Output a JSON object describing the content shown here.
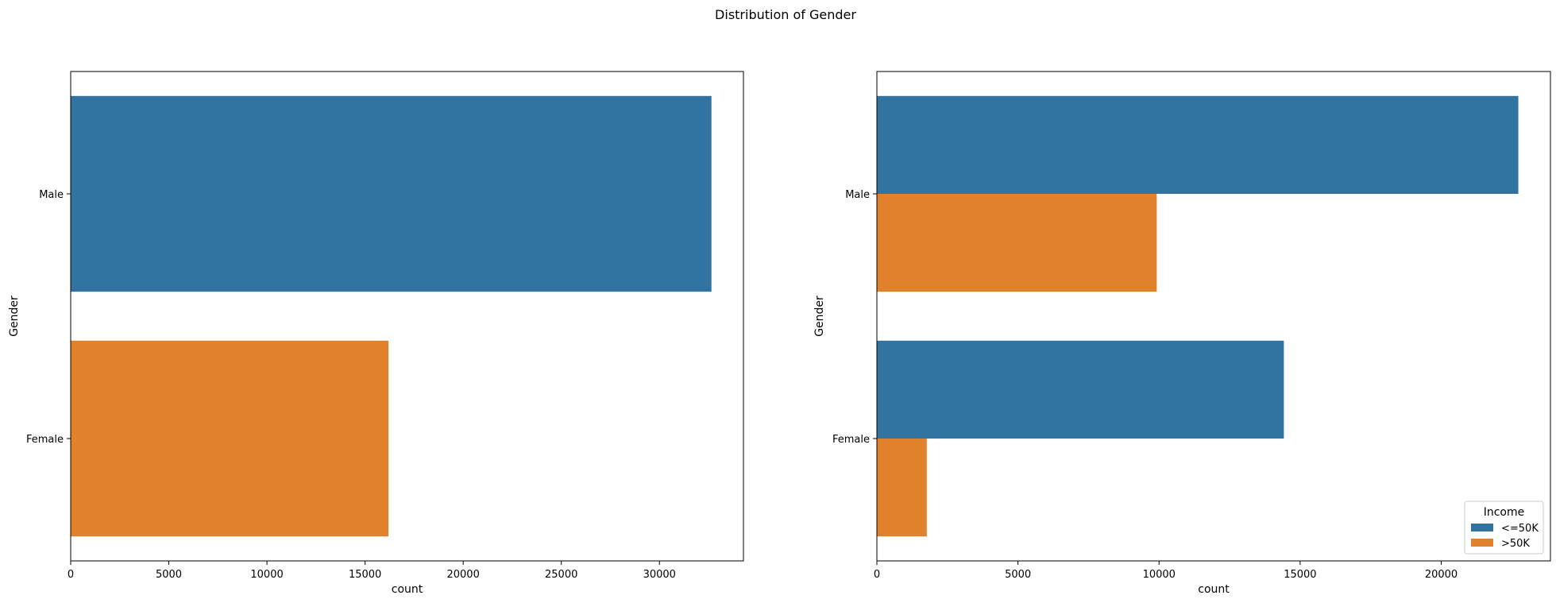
{
  "figure": {
    "suptitle": "Distribution of Gender"
  },
  "colors": {
    "blue": "#3274a1",
    "orange": "#e1812c"
  },
  "chart_data": [
    {
      "type": "bar",
      "orientation": "horizontal",
      "categories": [
        "Male",
        "Female"
      ],
      "values": [
        32650,
        16192
      ],
      "bar_colors": [
        "#3274a1",
        "#e1812c"
      ],
      "xlabel": "count",
      "ylabel": "Gender",
      "xlim": [
        0,
        34280
      ],
      "xticks": [
        0,
        5000,
        10000,
        15000,
        20000,
        25000,
        30000
      ],
      "grid": false
    },
    {
      "type": "bar",
      "orientation": "horizontal",
      "categories": [
        "Male",
        "Female"
      ],
      "series": [
        {
          "name": "<=50K",
          "values": [
            22732,
            14423
          ],
          "color": "#3274a1"
        },
        {
          "name": ">50K",
          "values": [
            9918,
            1769
          ],
          "color": "#e1812c"
        }
      ],
      "xlabel": "count",
      "ylabel": "Gender",
      "xlim": [
        0,
        23870
      ],
      "xticks": [
        0,
        5000,
        10000,
        15000,
        20000
      ],
      "legend": {
        "title": "Income",
        "placement": "lower-right"
      },
      "grid": false
    }
  ]
}
